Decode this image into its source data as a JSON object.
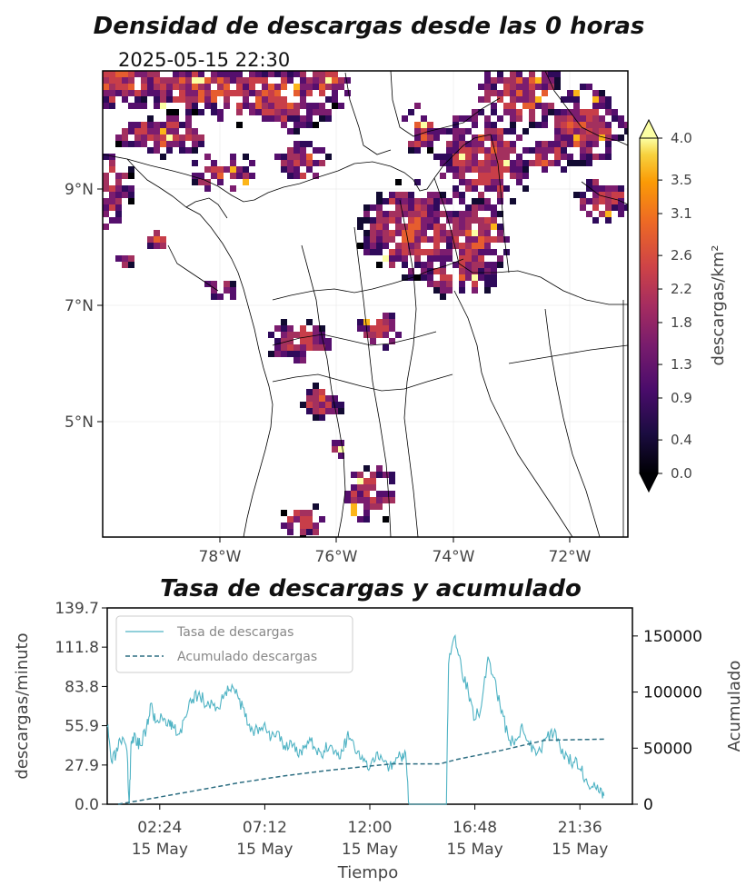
{
  "map_panel": {
    "title": "Densidad de descargas desde las 0 horas",
    "timestamp": "2025-05-15 22:30",
    "lon_ticks": [
      "78°W",
      "76°W",
      "74°W",
      "72°W"
    ],
    "lat_ticks": [
      "9°N",
      "7°N",
      "5°N"
    ],
    "colorbar": {
      "label": "descargas/km²",
      "ticks": [
        "0.0",
        "0.4",
        "0.9",
        "1.3",
        "1.8",
        "2.2",
        "2.6",
        "3.1",
        "3.5",
        "4.0"
      ],
      "cmap": "inferno"
    }
  },
  "chart_data": [
    {
      "type": "heatmap",
      "title": "Densidad de descargas desde las 0 horas",
      "annotation": "2025-05-15 22:30",
      "xticks": [
        "78°W",
        "76°W",
        "74°W",
        "72°W"
      ],
      "yticks": [
        "9°N",
        "7°N",
        "5°N"
      ],
      "x_range": [
        -80,
        -71
      ],
      "y_range": [
        3,
        11
      ],
      "colorbar_label": "descargas/km²",
      "colorbar_ticks": [
        0.0,
        0.4,
        0.9,
        1.3,
        1.8,
        2.2,
        2.6,
        3.1,
        3.5,
        4.0
      ],
      "colorbar_range": [
        0.0,
        4.0
      ],
      "colorbar_extend": "both",
      "cmap": "inferno"
    },
    {
      "type": "line",
      "title": "Tasa de descargas y acumulado",
      "xlabel": "Tiempo",
      "ylabel": "descargas/minuto",
      "ylabel_right": "Acumulado",
      "xticks": [
        "02:24\n15 May",
        "07:12\n15 May",
        "12:00\n15 May",
        "16:48\n15 May",
        "21:36\n15 May"
      ],
      "xtick_hours": [
        2.4,
        7.2,
        12.0,
        16.8,
        21.6
      ],
      "x_range_hours": [
        0,
        24
      ],
      "yticks_left": [
        "0.0",
        "27.9",
        "55.9",
        "83.8",
        "111.8",
        "139.7"
      ],
      "ylim_left": [
        0,
        139.7
      ],
      "yticks_right": [
        "0",
        "50000",
        "100000",
        "150000"
      ],
      "ylim_right": [
        0,
        175000
      ],
      "legend_position": "top-left",
      "series": [
        {
          "name": "Tasa de descargas",
          "axis": "left",
          "style": "solid",
          "color": "#4fb3c4",
          "x": [
            0.0,
            0.2,
            0.4,
            0.6,
            0.9,
            1.0,
            1.1,
            1.3,
            1.5,
            1.8,
            2.0,
            2.2,
            2.5,
            2.8,
            3.0,
            3.3,
            3.6,
            3.9,
            4.2,
            4.5,
            4.8,
            5.1,
            5.4,
            5.7,
            6.0,
            6.3,
            6.6,
            6.9,
            7.2,
            7.5,
            7.8,
            8.1,
            8.4,
            8.7,
            9.0,
            9.3,
            9.6,
            9.9,
            10.2,
            10.5,
            10.8,
            11.0,
            11.3,
            11.6,
            11.9,
            12.2,
            12.5,
            12.8,
            13.1,
            13.4,
            13.6,
            13.8,
            14.5,
            15.2,
            15.5,
            15.6,
            15.9,
            16.2,
            16.5,
            16.8,
            17.1,
            17.4,
            17.7,
            18.0,
            18.3,
            18.6,
            18.9,
            19.2,
            19.5,
            19.8,
            20.1,
            20.4,
            20.7,
            21.0,
            21.3,
            21.6,
            21.9,
            22.2,
            22.5,
            22.7
          ],
          "y": [
            55,
            30,
            35,
            45,
            38,
            0,
            45,
            48,
            42,
            55,
            72,
            58,
            62,
            60,
            55,
            50,
            62,
            75,
            80,
            70,
            72,
            68,
            80,
            85,
            75,
            62,
            55,
            50,
            58,
            48,
            52,
            42,
            45,
            35,
            40,
            45,
            35,
            38,
            42,
            35,
            38,
            52,
            40,
            32,
            25,
            30,
            35,
            28,
            30,
            34,
            38,
            0,
            0,
            0,
            0,
            100,
            120,
            95,
            80,
            60,
            70,
            105,
            90,
            65,
            50,
            42,
            55,
            45,
            40,
            38,
            48,
            50,
            40,
            35,
            30,
            25,
            18,
            12,
            8,
            6
          ]
        },
        {
          "name": "Acumulado descargas",
          "axis": "right",
          "style": "dashed",
          "color": "#2d6e82",
          "x": [
            0.5,
            2.0,
            4.0,
            6.0,
            8.0,
            10.0,
            12.0,
            13.0,
            15.2,
            16.0,
            18.0,
            20.0,
            22.7
          ],
          "y": [
            0,
            5000,
            12000,
            19000,
            25000,
            30000,
            34000,
            36000,
            36000,
            40000,
            48000,
            57000,
            58000
          ]
        }
      ]
    }
  ]
}
